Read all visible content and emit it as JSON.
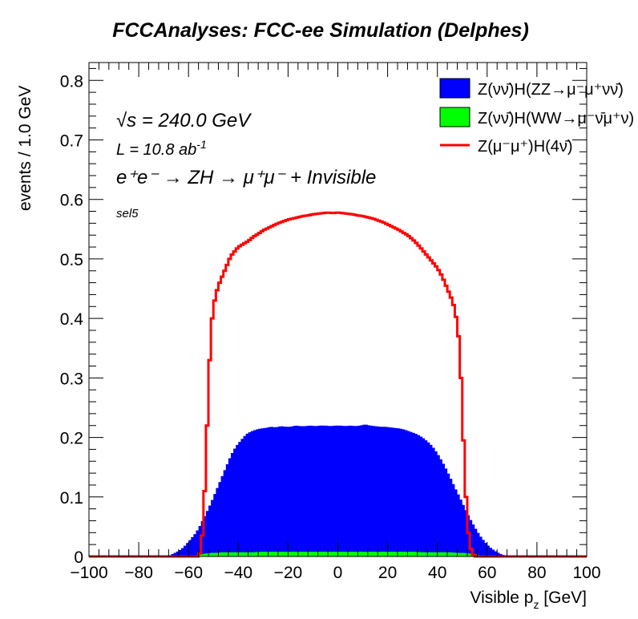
{
  "title": "FCCAnalyses: FCC-ee Simulation (Delphes)",
  "annotations": {
    "sqrt_s_symbol": "√s",
    "sqrt_s_value": " = 240.0 GeV",
    "lumi_prefix": "L = 10.8 ab",
    "lumi_exp": "-1",
    "process": "e⁺e⁻ → ZH → μ⁺μ⁻ + Invisible",
    "selection": "sel5"
  },
  "chart_data": {
    "type": "histogram",
    "xlabel": "Visible p_z [GeV]",
    "xlabel_main": "Visible p",
    "xlabel_sub": "z",
    "xlabel_unit": " [GeV]",
    "ylabel": "events / 1.0 GeV",
    "xlim": [
      -100,
      100
    ],
    "ylim": [
      0,
      0.83
    ],
    "bin_width": 1.0,
    "x_ticks": [
      "−100",
      "−80",
      "−60",
      "−40",
      "−20",
      "0",
      "20",
      "40",
      "60",
      "80",
      "100"
    ],
    "y_ticks": [
      "0",
      "0.1",
      "0.2",
      "0.3",
      "0.4",
      "0.5",
      "0.6",
      "0.7",
      "0.8"
    ],
    "legend_position": "top-right",
    "series": [
      {
        "name": "Z(νν̄)H(ZZ→μ⁻μ⁺νν̄)",
        "style": "stacked-fill",
        "color": "#0000ff",
        "points": [
          [
            -69,
            0
          ],
          [
            -67,
            0.003
          ],
          [
            -65,
            0.007
          ],
          [
            -63,
            0.012
          ],
          [
            -61,
            0.02
          ],
          [
            -59,
            0.03
          ],
          [
            -57,
            0.04
          ],
          [
            -55,
            0.055
          ],
          [
            -53,
            0.072
          ],
          [
            -51,
            0.09
          ],
          [
            -49,
            0.11
          ],
          [
            -47,
            0.13
          ],
          [
            -45,
            0.15
          ],
          [
            -43,
            0.17
          ],
          [
            -41,
            0.185
          ],
          [
            -39,
            0.195
          ],
          [
            -37,
            0.205
          ],
          [
            -35,
            0.21
          ],
          [
            -33,
            0.213
          ],
          [
            -31,
            0.215
          ],
          [
            -29,
            0.216
          ],
          [
            -27,
            0.218
          ],
          [
            -25,
            0.217
          ],
          [
            -23,
            0.219
          ],
          [
            -21,
            0.218
          ],
          [
            -19,
            0.218
          ],
          [
            -17,
            0.22
          ],
          [
            -15,
            0.219
          ],
          [
            -13,
            0.219
          ],
          [
            -11,
            0.22
          ],
          [
            -9,
            0.219
          ],
          [
            -7,
            0.22
          ],
          [
            -5,
            0.22
          ],
          [
            -3,
            0.219
          ],
          [
            -1,
            0.22
          ],
          [
            1,
            0.22
          ],
          [
            3,
            0.219
          ],
          [
            5,
            0.22
          ],
          [
            7,
            0.219
          ],
          [
            9,
            0.22
          ],
          [
            11,
            0.222
          ],
          [
            13,
            0.22
          ],
          [
            15,
            0.219
          ],
          [
            17,
            0.218
          ],
          [
            19,
            0.218
          ],
          [
            21,
            0.217
          ],
          [
            23,
            0.216
          ],
          [
            25,
            0.215
          ],
          [
            27,
            0.213
          ],
          [
            29,
            0.21
          ],
          [
            31,
            0.207
          ],
          [
            33,
            0.203
          ],
          [
            35,
            0.197
          ],
          [
            37,
            0.19
          ],
          [
            39,
            0.18
          ],
          [
            41,
            0.167
          ],
          [
            43,
            0.152
          ],
          [
            45,
            0.135
          ],
          [
            47,
            0.117
          ],
          [
            49,
            0.1
          ],
          [
            51,
            0.082
          ],
          [
            53,
            0.065
          ],
          [
            55,
            0.05
          ],
          [
            57,
            0.036
          ],
          [
            59,
            0.025
          ],
          [
            61,
            0.016
          ],
          [
            63,
            0.01
          ],
          [
            65,
            0.005
          ],
          [
            67,
            0.002
          ],
          [
            69,
            0
          ]
        ]
      },
      {
        "name": "Z(νν̄)H(WW→μ⁻ν̄μ⁺ν)",
        "style": "stacked-fill",
        "color": "#00ff00",
        "points": [
          [
            -59,
            0
          ],
          [
            -57,
            0.002
          ],
          [
            -55,
            0.004
          ],
          [
            -53,
            0.005
          ],
          [
            -51,
            0.006
          ],
          [
            -49,
            0.006
          ],
          [
            -47,
            0.007
          ],
          [
            -45,
            0.007
          ],
          [
            -40,
            0.007
          ],
          [
            -35,
            0.007
          ],
          [
            -30,
            0.008
          ],
          [
            -25,
            0.008
          ],
          [
            -20,
            0.008
          ],
          [
            -15,
            0.008
          ],
          [
            -10,
            0.008
          ],
          [
            -5,
            0.008
          ],
          [
            0,
            0.008
          ],
          [
            5,
            0.008
          ],
          [
            10,
            0.008
          ],
          [
            15,
            0.008
          ],
          [
            20,
            0.008
          ],
          [
            25,
            0.008
          ],
          [
            30,
            0.008
          ],
          [
            35,
            0.007
          ],
          [
            40,
            0.007
          ],
          [
            45,
            0.007
          ],
          [
            49,
            0.006
          ],
          [
            51,
            0.006
          ],
          [
            53,
            0.005
          ],
          [
            55,
            0.004
          ],
          [
            57,
            0.002
          ],
          [
            59,
            0
          ]
        ]
      },
      {
        "name": "Z(μ⁻μ⁺)H(4ν̄)",
        "style": "line",
        "color": "#ff0000",
        "points": [
          [
            -100,
            0
          ],
          [
            -56,
            0
          ],
          [
            -55,
            0.01
          ],
          [
            -54,
            0.06
          ],
          [
            -53,
            0.16
          ],
          [
            -52,
            0.28
          ],
          [
            -51,
            0.38
          ],
          [
            -50,
            0.42
          ],
          [
            -49,
            0.44
          ],
          [
            -48,
            0.455
          ],
          [
            -47,
            0.465
          ],
          [
            -46,
            0.475
          ],
          [
            -45,
            0.485
          ],
          [
            -44,
            0.495
          ],
          [
            -43,
            0.505
          ],
          [
            -42,
            0.51
          ],
          [
            -41,
            0.515
          ],
          [
            -40,
            0.52
          ],
          [
            -38,
            0.525
          ],
          [
            -36,
            0.53
          ],
          [
            -34,
            0.537
          ],
          [
            -32,
            0.542
          ],
          [
            -30,
            0.548
          ],
          [
            -28,
            0.552
          ],
          [
            -26,
            0.556
          ],
          [
            -24,
            0.56
          ],
          [
            -22,
            0.563
          ],
          [
            -20,
            0.566
          ],
          [
            -18,
            0.568
          ],
          [
            -16,
            0.57
          ],
          [
            -14,
            0.572
          ],
          [
            -12,
            0.573
          ],
          [
            -10,
            0.575
          ],
          [
            -8,
            0.576
          ],
          [
            -6,
            0.577
          ],
          [
            -4,
            0.578
          ],
          [
            -2,
            0.577
          ],
          [
            0,
            0.578
          ],
          [
            2,
            0.577
          ],
          [
            4,
            0.576
          ],
          [
            6,
            0.575
          ],
          [
            8,
            0.573
          ],
          [
            10,
            0.572
          ],
          [
            12,
            0.57
          ],
          [
            14,
            0.568
          ],
          [
            16,
            0.565
          ],
          [
            18,
            0.562
          ],
          [
            20,
            0.558
          ],
          [
            22,
            0.554
          ],
          [
            24,
            0.55
          ],
          [
            26,
            0.545
          ],
          [
            28,
            0.54
          ],
          [
            30,
            0.533
          ],
          [
            32,
            0.525
          ],
          [
            34,
            0.515
          ],
          [
            36,
            0.505
          ],
          [
            38,
            0.495
          ],
          [
            40,
            0.485
          ],
          [
            42,
            0.47
          ],
          [
            43,
            0.46
          ],
          [
            44,
            0.45
          ],
          [
            45,
            0.44
          ],
          [
            46,
            0.43
          ],
          [
            47,
            0.415
          ],
          [
            48,
            0.39
          ],
          [
            49,
            0.35
          ],
          [
            50,
            0.25
          ],
          [
            51,
            0.14
          ],
          [
            52,
            0.06
          ],
          [
            53,
            0.02
          ],
          [
            54,
            0.005
          ],
          [
            55,
            0
          ],
          [
            100,
            0
          ]
        ]
      }
    ]
  }
}
